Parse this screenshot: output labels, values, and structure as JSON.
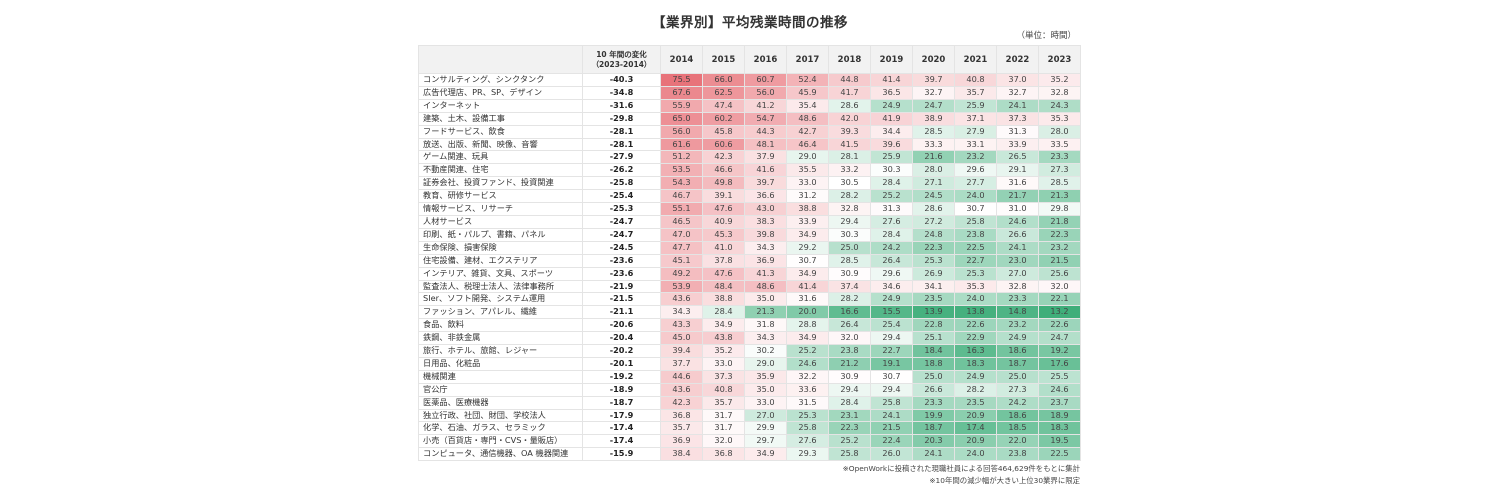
{
  "title": "【業界別】平均残業時間の推移",
  "unit_label": "（単位：時間）",
  "header": {
    "label_col": "",
    "change_col_line1": "10 年間の変化",
    "change_col_line2": "（2023-2014）",
    "years": [
      "2014",
      "2015",
      "2016",
      "2017",
      "2018",
      "2019",
      "2020",
      "2021",
      "2022",
      "2023"
    ]
  },
  "colors": {
    "high": "#e8737a",
    "mid": "#ffffff",
    "low": "#3fae7a",
    "header_bg": "#f2f2f2",
    "border": "#e4e4e4"
  },
  "notes": [
    "※OpenWorkに投稿された現職社員による回答464,629件をもとに集計",
    "※10年間の減少幅が大きい上位30業界に限定"
  ],
  "chart_data": {
    "type": "heatmap",
    "title": "【業界別】平均残業時間の推移",
    "unit": "時間",
    "x": [
      "2014",
      "2015",
      "2016",
      "2017",
      "2018",
      "2019",
      "2020",
      "2021",
      "2022",
      "2023"
    ],
    "change_label": "10年間の変化(2023-2014)",
    "rows": [
      {
        "label": "コンサルティング、シンクタンク",
        "change": "-40.3",
        "values": [
          75.5,
          66.0,
          60.7,
          52.4,
          44.8,
          41.4,
          39.7,
          40.8,
          37.0,
          35.2
        ]
      },
      {
        "label": "広告代理店、PR、SP、デザイン",
        "change": "-34.8",
        "values": [
          67.6,
          62.5,
          56.0,
          45.9,
          41.7,
          36.5,
          32.7,
          35.7,
          32.7,
          32.8
        ]
      },
      {
        "label": "インターネット",
        "change": "-31.6",
        "values": [
          55.9,
          47.4,
          41.2,
          35.4,
          28.6,
          24.9,
          24.7,
          25.9,
          24.1,
          24.3
        ]
      },
      {
        "label": "建築、土木、設備工事",
        "change": "-29.8",
        "values": [
          65.0,
          60.2,
          54.7,
          48.6,
          42.0,
          41.9,
          38.9,
          37.1,
          37.3,
          35.3
        ]
      },
      {
        "label": "フードサービス、飲食",
        "change": "-28.1",
        "values": [
          56.0,
          45.8,
          44.3,
          42.7,
          39.3,
          34.4,
          28.5,
          27.9,
          31.3,
          28.0
        ]
      },
      {
        "label": "放送、出版、新聞、映像、音響",
        "change": "-28.1",
        "values": [
          61.6,
          60.6,
          48.1,
          46.4,
          41.5,
          39.6,
          33.3,
          33.1,
          33.9,
          33.5
        ]
      },
      {
        "label": "ゲーム関連、玩具",
        "change": "-27.9",
        "values": [
          51.2,
          42.3,
          37.9,
          29.0,
          28.1,
          25.9,
          21.6,
          23.2,
          26.5,
          23.3
        ]
      },
      {
        "label": "不動産関連、住宅",
        "change": "-26.2",
        "values": [
          53.5,
          46.6,
          41.6,
          35.5,
          33.2,
          30.3,
          28.0,
          29.6,
          29.1,
          27.3
        ]
      },
      {
        "label": "証券会社、投資ファンド、投資関連",
        "change": "-25.8",
        "values": [
          54.3,
          49.8,
          39.7,
          33.0,
          30.5,
          28.4,
          27.1,
          27.7,
          31.6,
          28.5
        ]
      },
      {
        "label": "教育、研修サービス",
        "change": "-25.4",
        "values": [
          46.7,
          39.1,
          36.6,
          31.2,
          28.2,
          25.2,
          24.5,
          24.0,
          21.7,
          21.3
        ]
      },
      {
        "label": "情報サービス、リサーチ",
        "change": "-25.3",
        "values": [
          55.1,
          47.6,
          43.0,
          38.8,
          32.8,
          31.3,
          28.6,
          30.7,
          31.0,
          29.8
        ]
      },
      {
        "label": "人材サービス",
        "change": "-24.7",
        "values": [
          46.5,
          40.9,
          38.3,
          33.9,
          29.4,
          27.6,
          27.2,
          25.8,
          24.6,
          21.8
        ]
      },
      {
        "label": "印刷、紙・パルプ、書籍、パネル",
        "change": "-24.7",
        "values": [
          47.0,
          45.3,
          39.8,
          34.9,
          30.3,
          28.4,
          24.8,
          23.8,
          26.6,
          22.3
        ]
      },
      {
        "label": "生命保険、損害保険",
        "change": "-24.5",
        "values": [
          47.7,
          41.0,
          34.3,
          29.2,
          25.0,
          24.2,
          22.3,
          22.5,
          24.1,
          23.2
        ]
      },
      {
        "label": "住宅設備、建材、エクステリア",
        "change": "-23.6",
        "values": [
          45.1,
          37.8,
          36.9,
          30.7,
          28.5,
          26.4,
          25.3,
          22.7,
          23.0,
          21.5
        ]
      },
      {
        "label": "インテリア、雑貨、文具、スポーツ",
        "change": "-23.6",
        "values": [
          49.2,
          47.6,
          41.3,
          34.9,
          30.9,
          29.6,
          26.9,
          25.3,
          27.0,
          25.6
        ]
      },
      {
        "label": "監査法人、税理士法人、法律事務所",
        "change": "-21.9",
        "values": [
          53.9,
          48.4,
          48.6,
          41.4,
          37.4,
          34.6,
          34.1,
          35.3,
          32.8,
          32.0
        ]
      },
      {
        "label": "SIer、ソフト開発、システム運用",
        "change": "-21.5",
        "values": [
          43.6,
          38.8,
          35.0,
          31.6,
          28.2,
          24.9,
          23.5,
          24.0,
          23.3,
          22.1
        ]
      },
      {
        "label": "ファッション、アパレル、繊維",
        "change": "-21.1",
        "values": [
          34.3,
          28.4,
          21.3,
          20.0,
          16.6,
          15.5,
          13.9,
          13.8,
          14.8,
          13.2
        ]
      },
      {
        "label": "食品、飲料",
        "change": "-20.6",
        "values": [
          43.3,
          34.9,
          31.8,
          28.8,
          26.4,
          25.4,
          22.8,
          22.6,
          23.2,
          22.6
        ]
      },
      {
        "label": "鉄鋼、非鉄金属",
        "change": "-20.4",
        "values": [
          45.0,
          43.8,
          34.3,
          34.9,
          32.0,
          29.4,
          25.1,
          22.9,
          24.9,
          24.7
        ]
      },
      {
        "label": "旅行、ホテル、旅館、レジャー",
        "change": "-20.2",
        "values": [
          39.4,
          35.2,
          30.2,
          25.2,
          23.8,
          22.7,
          18.4,
          16.3,
          18.6,
          19.2
        ]
      },
      {
        "label": "日用品、化粧品",
        "change": "-20.1",
        "values": [
          37.7,
          33.0,
          29.0,
          24.6,
          21.2,
          19.1,
          18.8,
          18.3,
          18.7,
          17.6
        ]
      },
      {
        "label": "機械関連",
        "change": "-19.2",
        "values": [
          44.6,
          37.3,
          35.9,
          32.2,
          30.9,
          30.7,
          25.0,
          24.9,
          25.0,
          25.5
        ]
      },
      {
        "label": "官公庁",
        "change": "-18.9",
        "values": [
          43.6,
          40.8,
          35.0,
          33.6,
          29.4,
          29.4,
          26.6,
          28.2,
          27.3,
          24.6
        ]
      },
      {
        "label": "医薬品、医療機器",
        "change": "-18.7",
        "values": [
          42.3,
          35.7,
          33.0,
          31.5,
          28.4,
          25.8,
          23.3,
          23.5,
          24.2,
          23.7
        ]
      },
      {
        "label": "独立行政、社団、財団、学校法人",
        "change": "-17.9",
        "values": [
          36.8,
          31.7,
          27.0,
          25.3,
          23.1,
          24.1,
          19.9,
          20.9,
          18.6,
          18.9
        ]
      },
      {
        "label": "化学、石油、ガラス、セラミック",
        "change": "-17.4",
        "values": [
          35.7,
          31.7,
          29.9,
          25.8,
          22.3,
          21.5,
          18.7,
          17.4,
          18.5,
          18.3
        ]
      },
      {
        "label": "小売（百貨店・専門・CVS・量販店）",
        "change": "-17.4",
        "values": [
          36.9,
          32.0,
          29.7,
          27.6,
          25.2,
          22.4,
          20.3,
          20.9,
          22.0,
          19.5
        ]
      },
      {
        "label": "コンピュータ、通信機器、OA 機器関連",
        "change": "-15.9",
        "values": [
          38.4,
          36.8,
          34.9,
          29.3,
          25.8,
          26.0,
          24.1,
          24.0,
          23.8,
          22.5
        ]
      }
    ],
    "color_scale": {
      "min": 13.2,
      "center": 30.5,
      "max": 75.5
    }
  }
}
